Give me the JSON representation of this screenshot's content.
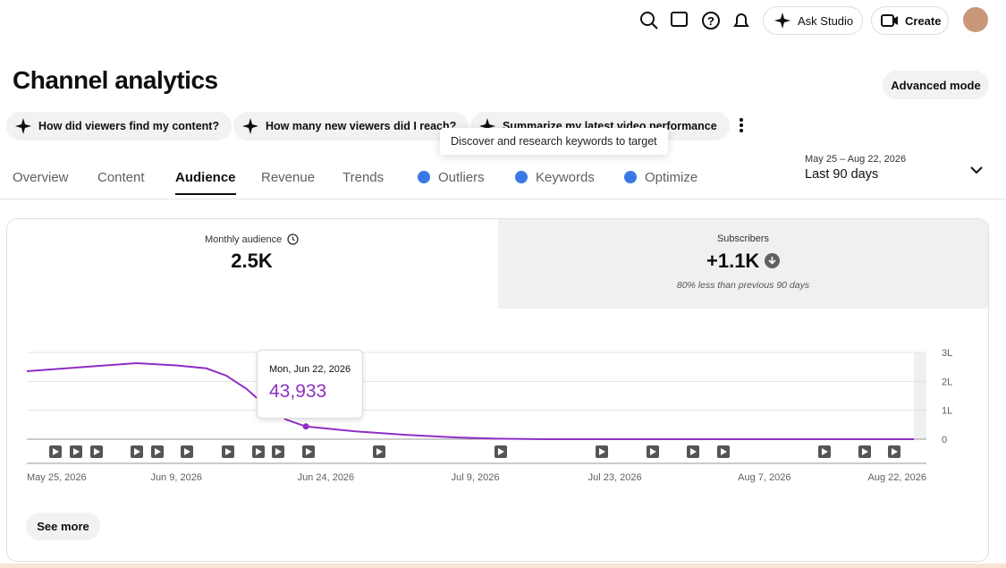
{
  "header": {
    "ask_studio": "Ask Studio",
    "create": "Create"
  },
  "page": {
    "title": "Channel analytics",
    "advanced_mode": "Advanced mode",
    "chips": [
      "How did viewers find my content?",
      "How many new viewers did I reach?",
      "Summarize my latest video performance"
    ],
    "hover_tooltip": "Discover and research keywords to target",
    "tabs": [
      "Overview",
      "Content",
      "Audience",
      "Revenue",
      "Trends",
      "Outliers",
      "Keywords",
      "Optimize"
    ],
    "date_range": {
      "dates": "May 25 – Aug 22, 2026",
      "label": "Last 90 days"
    },
    "cards": [
      {
        "label": "Monthly audience",
        "value": "2.5K"
      },
      {
        "label": "Subscribers",
        "value": "+1.1K",
        "note": "80% less than previous 90 days"
      }
    ],
    "see_more": "See more"
  },
  "chart_data": {
    "type": "line",
    "color": "#8e2fc4",
    "grid": true,
    "x": [
      "May 25, 2026",
      "Jun 5, 2026",
      "Jun 9, 2026",
      "Jun 12, 2026",
      "Jun 14, 2026",
      "Jun 16, 2026",
      "Jun 18, 2026",
      "Jun 20, 2026",
      "Jun 22, 2026",
      "Jun 27, 2026",
      "Jul 2, 2026",
      "Jul 7, 2026",
      "Jul 11, 2026",
      "Jul 16, 2026",
      "Aug 22, 2026"
    ],
    "values": [
      235000,
      263000,
      255000,
      245000,
      220000,
      175000,
      115000,
      68000,
      43933,
      27000,
      15000,
      6000,
      2000,
      0,
      0
    ],
    "xlim": [
      "May 25, 2026",
      "Aug 22, 2026"
    ],
    "xticks": [
      "May 25, 2026",
      "Jun 9, 2026",
      "Jun 24, 2026",
      "Jul 9, 2026",
      "Jul 23, 2026",
      "Aug 7, 2026",
      "Aug 22, 2026"
    ],
    "ylim": [
      0,
      300000
    ],
    "yticks": [
      {
        "value": 0,
        "label": "0"
      },
      {
        "value": 100000,
        "label": "1L"
      },
      {
        "value": 200000,
        "label": "2L"
      },
      {
        "value": 300000,
        "label": "3L"
      }
    ],
    "tooltip": {
      "date": "Mon, Jun 22, 2026",
      "value": "43,933"
    }
  }
}
